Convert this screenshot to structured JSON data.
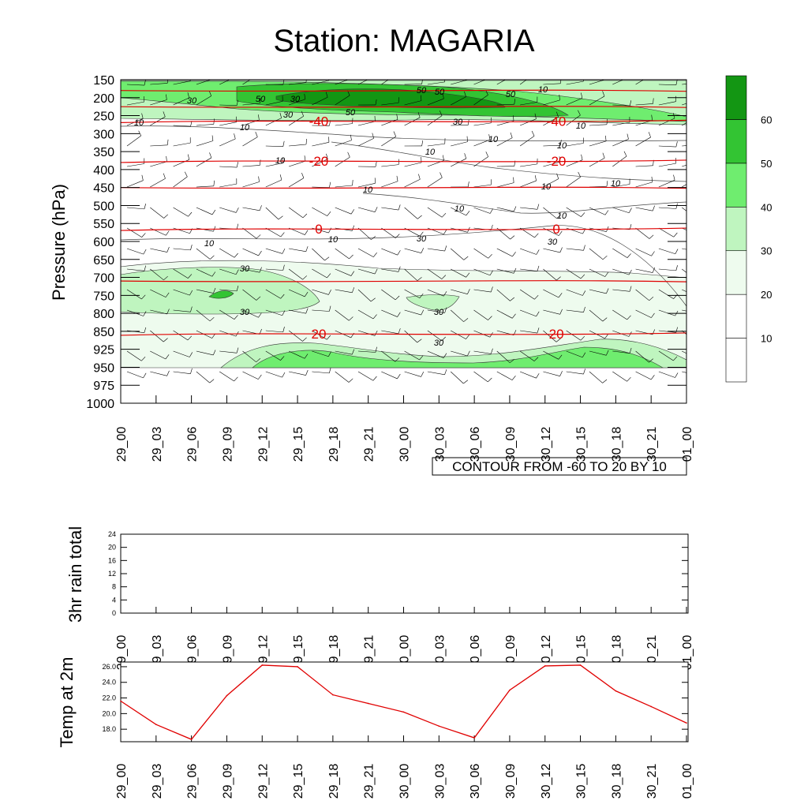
{
  "title": "Station: MAGARIA",
  "colors": {
    "temperature": "#e00000",
    "shade_10_20": "#ffffff",
    "shade_20_30": "#eefbee",
    "shade_30_40": "#bff5bf",
    "shade_40_50": "#6fed6f",
    "shade_50_60": "#33c433",
    "shade_60_plus": "#139613"
  },
  "time_ticks": [
    "29_00",
    "29_03",
    "29_06",
    "29_09",
    "29_12",
    "29_15",
    "29_18",
    "29_21",
    "30_00",
    "30_03",
    "30_06",
    "30_09",
    "30_12",
    "30_15",
    "30_18",
    "30_21",
    "01_00"
  ],
  "chart_data": [
    {
      "type": "heatmap",
      "ylabel": "Pressure (hPa)",
      "y_ticks": [
        "150",
        "200",
        "250",
        "300",
        "350",
        "400",
        "450",
        "500",
        "550",
        "600",
        "650",
        "700",
        "750",
        "800",
        "850",
        "925",
        "950",
        "975",
        "1000"
      ],
      "info_label": "CONTOUR FROM -60 TO 20 BY 10",
      "colorbar": {
        "labels": [
          "10",
          "20",
          "30",
          "40",
          "50",
          "60"
        ],
        "levels": [
          10,
          20,
          30,
          40,
          50,
          60
        ]
      },
      "wind_speed_contour_labels": [
        "50",
        "50",
        "50",
        "50",
        "50",
        "30",
        "30",
        "30",
        "30",
        "10",
        "10",
        "10",
        "10",
        "10",
        "10",
        "10",
        "10",
        "10",
        "10",
        "10",
        "10",
        "10",
        "10",
        "10",
        "30",
        "30",
        "30",
        "30",
        "30",
        "30"
      ],
      "temperature_contours": [
        {
          "label": "-40",
          "pressure_hPa": 265
        },
        {
          "label": "-20",
          "pressure_hPa": 376
        },
        {
          "label": "0",
          "pressure_hPa": 565
        },
        {
          "label": "20",
          "pressure_hPa": 860
        }
      ]
    },
    {
      "type": "bar",
      "ylabel": "3hr rain total",
      "y_ticks": [
        "0",
        "4",
        "8",
        "12",
        "16",
        "20",
        "24"
      ],
      "ylim": [
        0,
        24
      ],
      "values": [
        0,
        0,
        0,
        0,
        0,
        0,
        0,
        0,
        0,
        0,
        0,
        0,
        0,
        0,
        0,
        0,
        0
      ]
    },
    {
      "type": "line",
      "ylabel": "Temp at 2m",
      "y_ticks": [
        "18.0",
        "20.0",
        "22.0",
        "24.0",
        "26.0"
      ],
      "ylim": [
        16.4,
        26.6
      ],
      "values": [
        21.6,
        18.6,
        16.7,
        22.3,
        26.2,
        26.0,
        22.4,
        21.3,
        20.2,
        18.4,
        16.9,
        23.0,
        26.1,
        26.2,
        22.9,
        20.9,
        18.8
      ]
    }
  ]
}
